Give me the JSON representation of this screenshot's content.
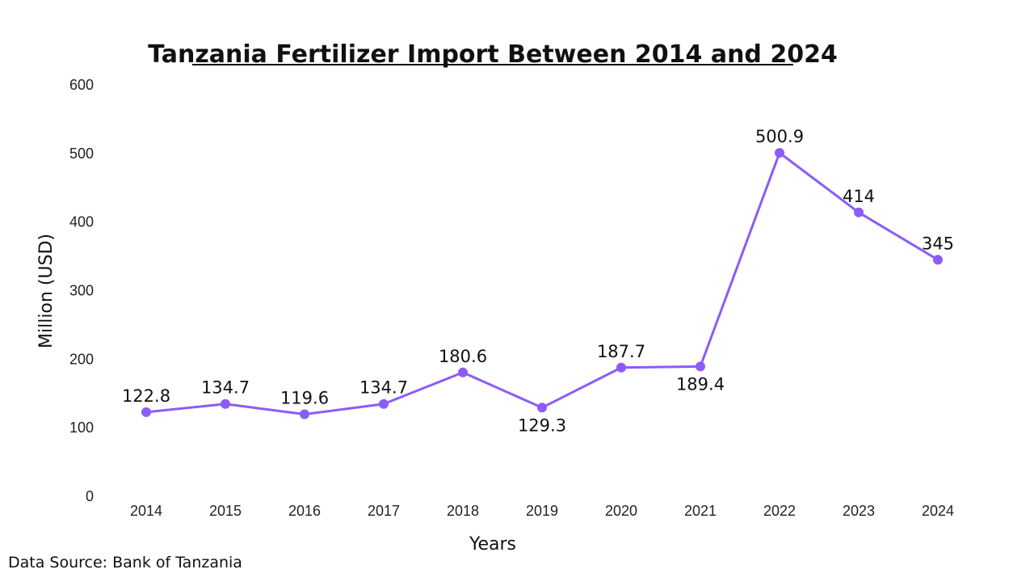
{
  "chart_data": {
    "type": "line",
    "title": "Tanzania Fertilizer Import Between 2014 and 2024",
    "xlabel": "Years",
    "ylabel": "Million (USD)",
    "x": [
      "2014",
      "2015",
      "2016",
      "2017",
      "2018",
      "2019",
      "2020",
      "2021",
      "2022",
      "2023",
      "2024"
    ],
    "values": [
      122.8,
      134.7,
      119.6,
      134.7,
      180.6,
      129.3,
      187.7,
      189.4,
      500.9,
      414,
      345
    ],
    "data_labels": [
      "122.8",
      "134.7",
      "119.6",
      "134.7",
      "180.6",
      "129.3",
      "187.7",
      "189.4",
      "500.9",
      "414",
      "345"
    ],
    "label_positions": [
      "above",
      "above",
      "above",
      "above",
      "above",
      "below",
      "above",
      "below",
      "above",
      "above",
      "above"
    ],
    "ylim": [
      0,
      600
    ],
    "yticks": [
      "0",
      "100",
      "200",
      "300",
      "400",
      "500",
      "600"
    ],
    "grid": false,
    "legend": "none",
    "line_color": "#8B5CF6",
    "source": "Data Source: Bank of Tanzania"
  }
}
